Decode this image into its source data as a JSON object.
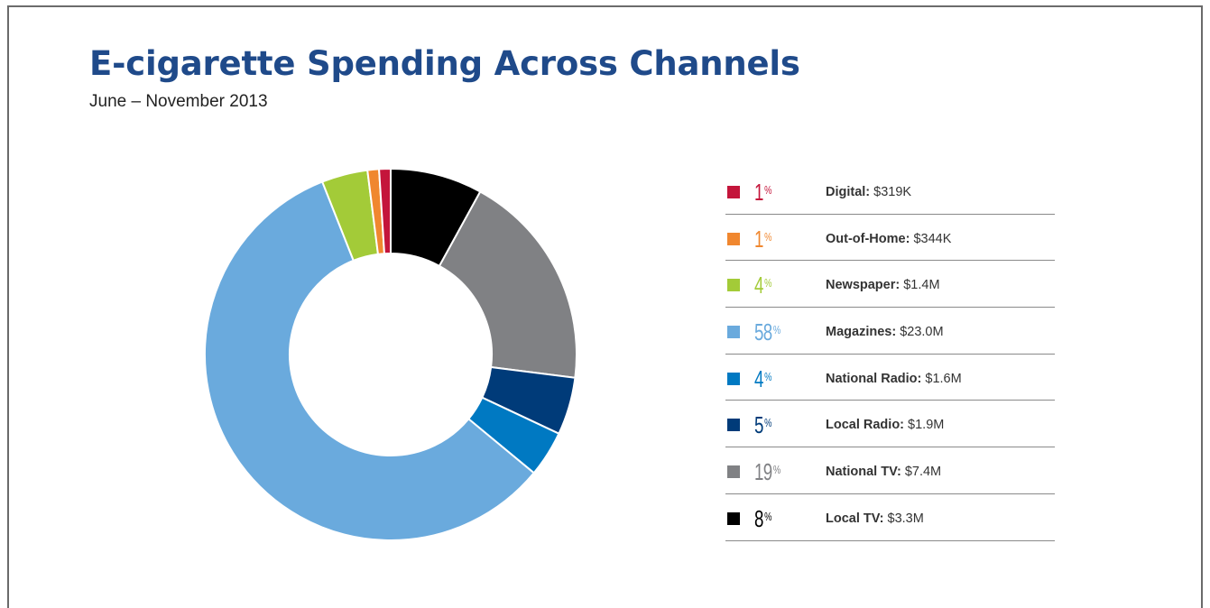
{
  "title": "E-cigarette Spending Across Channels",
  "subtitle": "June – November 2013",
  "chart_data": {
    "type": "pie",
    "title": "E-cigarette Spending Across Channels",
    "subtitle": "June – November 2013",
    "donut": true,
    "slices": [
      {
        "name": "Local TV",
        "percent": 8,
        "amount": "$3.3M",
        "color": "#000000"
      },
      {
        "name": "National TV",
        "percent": 19,
        "amount": "$7.4M",
        "color": "#808184"
      },
      {
        "name": "Local Radio",
        "percent": 5,
        "amount": "$1.9M",
        "color": "#003b79"
      },
      {
        "name": "National Radio",
        "percent": 4,
        "amount": "$1.6M",
        "color": "#0079c2"
      },
      {
        "name": "Magazines",
        "percent": 58,
        "amount": "$23.0M",
        "color": "#6aaadd"
      },
      {
        "name": "Newspaper",
        "percent": 4,
        "amount": "$1.4M",
        "color": "#a3cb38"
      },
      {
        "name": "Out-of-Home",
        "percent": 1,
        "amount": "$344K",
        "color": "#f0872f"
      },
      {
        "name": "Digital",
        "percent": 1,
        "amount": "$319K",
        "color": "#c4153b"
      }
    ],
    "slice_order": "clockwise from top",
    "legend_placement": "right"
  },
  "legend": {
    "percent_sign": "%",
    "items": [
      {
        "percent": "1",
        "name": "Digital:",
        "amount": "$319K",
        "color": "#c4153b"
      },
      {
        "percent": "1",
        "name": "Out-of-Home:",
        "amount": "$344K",
        "color": "#f0872f"
      },
      {
        "percent": "4",
        "name": "Newspaper:",
        "amount": "$1.4M",
        "color": "#a3cb38"
      },
      {
        "percent": "58",
        "name": "Magazines:",
        "amount": "$23.0M",
        "color": "#6aaadd"
      },
      {
        "percent": "4",
        "name": "National Radio:",
        "amount": "$1.6M",
        "color": "#0079c2"
      },
      {
        "percent": "5",
        "name": "Local Radio:",
        "amount": "$1.9M",
        "color": "#003b79"
      },
      {
        "percent": "19",
        "name": "National TV:",
        "amount": "$7.4M",
        "color": "#808184"
      },
      {
        "percent": "8",
        "name": "Local TV:",
        "amount": "$3.3M",
        "color": "#000000"
      }
    ]
  }
}
